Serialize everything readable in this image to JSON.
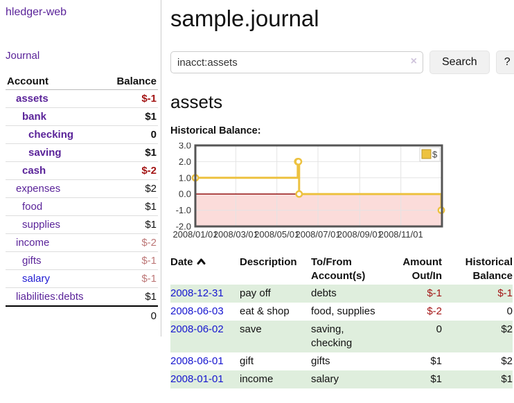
{
  "colors": {
    "link_purple": "#5a2399",
    "link_blue": "#1515d0",
    "negative_strong": "#a31515",
    "negative_weak": "#bd7777",
    "row_stripe_green": "#dfeedd",
    "chart_line_gold": "#edc240",
    "chart_negative_fill": "#fbdcda",
    "chart_zero_line": "#8b0000",
    "chart_border": "#555555",
    "chart_grid": "#e4e4e4"
  },
  "sidebar": {
    "app_title": "hledger-web",
    "journal_link": "Journal",
    "accounts_table": {
      "account_header": "Account",
      "balance_header": "Balance",
      "rows": [
        {
          "name": "assets",
          "balance": "$-1",
          "depth": 1,
          "bold": true,
          "balance_style": "neg-strong",
          "link_color": "purple"
        },
        {
          "name": "bank",
          "balance": "$1",
          "depth": 2,
          "bold": true,
          "balance_style": "normal",
          "link_color": "purple"
        },
        {
          "name": "checking",
          "balance": "0",
          "depth": 3,
          "bold": true,
          "balance_style": "normal",
          "link_color": "purple"
        },
        {
          "name": "saving",
          "balance": "$1",
          "depth": 3,
          "bold": true,
          "balance_style": "normal",
          "link_color": "purple"
        },
        {
          "name": "cash",
          "balance": "$-2",
          "depth": 2,
          "bold": true,
          "balance_style": "neg-strong",
          "link_color": "purple"
        },
        {
          "name": "expenses",
          "balance": "$2",
          "depth": 1,
          "bold": false,
          "balance_style": "normal",
          "link_color": "purple"
        },
        {
          "name": "food",
          "balance": "$1",
          "depth": 2,
          "bold": false,
          "balance_style": "normal",
          "link_color": "purple"
        },
        {
          "name": "supplies",
          "balance": "$1",
          "depth": 2,
          "bold": false,
          "balance_style": "normal",
          "link_color": "purple"
        },
        {
          "name": "income",
          "balance": "$-2",
          "depth": 1,
          "bold": false,
          "balance_style": "neg-weak",
          "link_color": "purple"
        },
        {
          "name": "gifts",
          "balance": "$-1",
          "depth": 2,
          "bold": false,
          "balance_style": "neg-weak",
          "link_color": "purple"
        },
        {
          "name": "salary",
          "balance": "$-1",
          "depth": 2,
          "bold": false,
          "balance_style": "neg-weak",
          "link_color": "blue"
        },
        {
          "name": "liabilities:debts",
          "balance": "$1",
          "depth": 1,
          "bold": false,
          "balance_style": "normal",
          "link_color": "purple"
        }
      ],
      "total": "0"
    }
  },
  "header": {
    "title": "sample.journal"
  },
  "search": {
    "value": "inacct:assets",
    "clear_icon": "×",
    "search_button": "Search",
    "help_button": "?"
  },
  "register": {
    "account_heading": "assets",
    "chart_title": "Historical Balance:"
  },
  "chart_data": {
    "type": "line",
    "title": "Historical Balance:",
    "step": true,
    "x_range": [
      "2008-01-01",
      "2009-01-01"
    ],
    "ylim": [
      -2,
      3
    ],
    "y_ticks": [
      "3.0",
      "2.0",
      "1.0",
      "0.0",
      "-1.0",
      "-2.0"
    ],
    "x_tick_dates": [
      "2008-01-01",
      "2008-03-01",
      "2008-05-01",
      "2008-07-01",
      "2008-09-01",
      "2008-11-01"
    ],
    "x_tick_labels": [
      "2008/01/01",
      "2008/03/01",
      "2008/05/01",
      "2008/07/01",
      "2008/09/01",
      "2008/11/01"
    ],
    "series": [
      {
        "name": "$",
        "color": "#edc240",
        "points": [
          {
            "date": "2008-01-01",
            "value": 1
          },
          {
            "date": "2008-06-01",
            "value": 2
          },
          {
            "date": "2008-06-02",
            "value": 2
          },
          {
            "date": "2008-06-03",
            "value": 0
          },
          {
            "date": "2008-12-31",
            "value": -1
          }
        ]
      }
    ],
    "legend": {
      "label": "$",
      "position": "top-right"
    },
    "grid": true,
    "negative_region_shaded": true
  },
  "transactions": {
    "columns": [
      {
        "line1": "Date",
        "line2": "",
        "align": "left",
        "sorted_asc": true
      },
      {
        "line1": "Description",
        "line2": "",
        "align": "left"
      },
      {
        "line1": "To/From",
        "line2": "Account(s)",
        "align": "left"
      },
      {
        "line1": "Amount",
        "line2": "Out/In",
        "align": "right"
      },
      {
        "line1": "Historical",
        "line2": "Balance",
        "align": "right"
      }
    ],
    "rows": [
      {
        "date": "2008-12-31",
        "description": "pay off",
        "accounts": "debts",
        "amount": "$-1",
        "balance": "$-1",
        "shaded": true
      },
      {
        "date": "2008-06-03",
        "description": "eat & shop",
        "accounts": "food, supplies",
        "amount": "$-2",
        "balance": "0",
        "shaded": false
      },
      {
        "date": "2008-06-02",
        "description": "save",
        "accounts": "saving, checking",
        "amount": "0",
        "balance": "$2",
        "shaded": true
      },
      {
        "date": "2008-06-01",
        "description": "gift",
        "accounts": "gifts",
        "amount": "$1",
        "balance": "$2",
        "shaded": false
      },
      {
        "date": "2008-01-01",
        "description": "income",
        "accounts": "salary",
        "amount": "$1",
        "balance": "$1",
        "shaded": true
      }
    ]
  }
}
